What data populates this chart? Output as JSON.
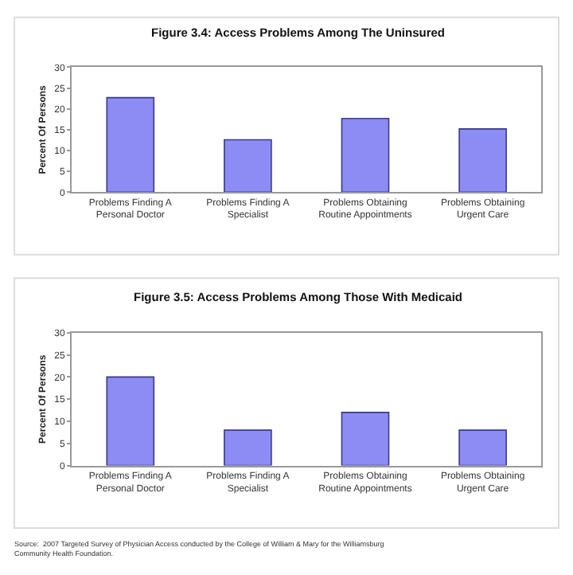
{
  "chart_data": [
    {
      "type": "bar",
      "title": "Figure 3.4: Access Problems Among The Uninsured",
      "ylabel": "Percent Of Persons",
      "categories": [
        "Problems Finding A Personal Doctor",
        "Problems Finding A Specialist",
        "Problems Obtaining Routine Appointments",
        "Problems Obtaining Urgent Care"
      ],
      "values": [
        22.7,
        12.6,
        17.7,
        15.2
      ],
      "color": "#8c8cf4",
      "ylim": [
        0,
        30
      ],
      "yticks": [
        0,
        5,
        10,
        15,
        20,
        25,
        30
      ]
    },
    {
      "type": "bar",
      "title": "Figure 3.5: Access Problems Among Those With Medicaid",
      "ylabel": "Percent Of Persons",
      "categories": [
        "Problems Finding A Personal Doctor",
        "Problems Finding A Specialist",
        "Problems Obtaining Routine Appointments",
        "Problems Obtaining Urgent Care"
      ],
      "values": [
        20,
        8,
        12,
        8
      ],
      "color": "#8c8cf4",
      "ylim": [
        0,
        30
      ],
      "yticks": [
        0,
        5,
        10,
        15,
        20,
        25,
        30
      ],
      "annotations": [
        "Source:  2007 Targeted Survey of Physician Access conducted by the College of William & Mary for the Williamsburg Community Health Foundation."
      ]
    }
  ]
}
